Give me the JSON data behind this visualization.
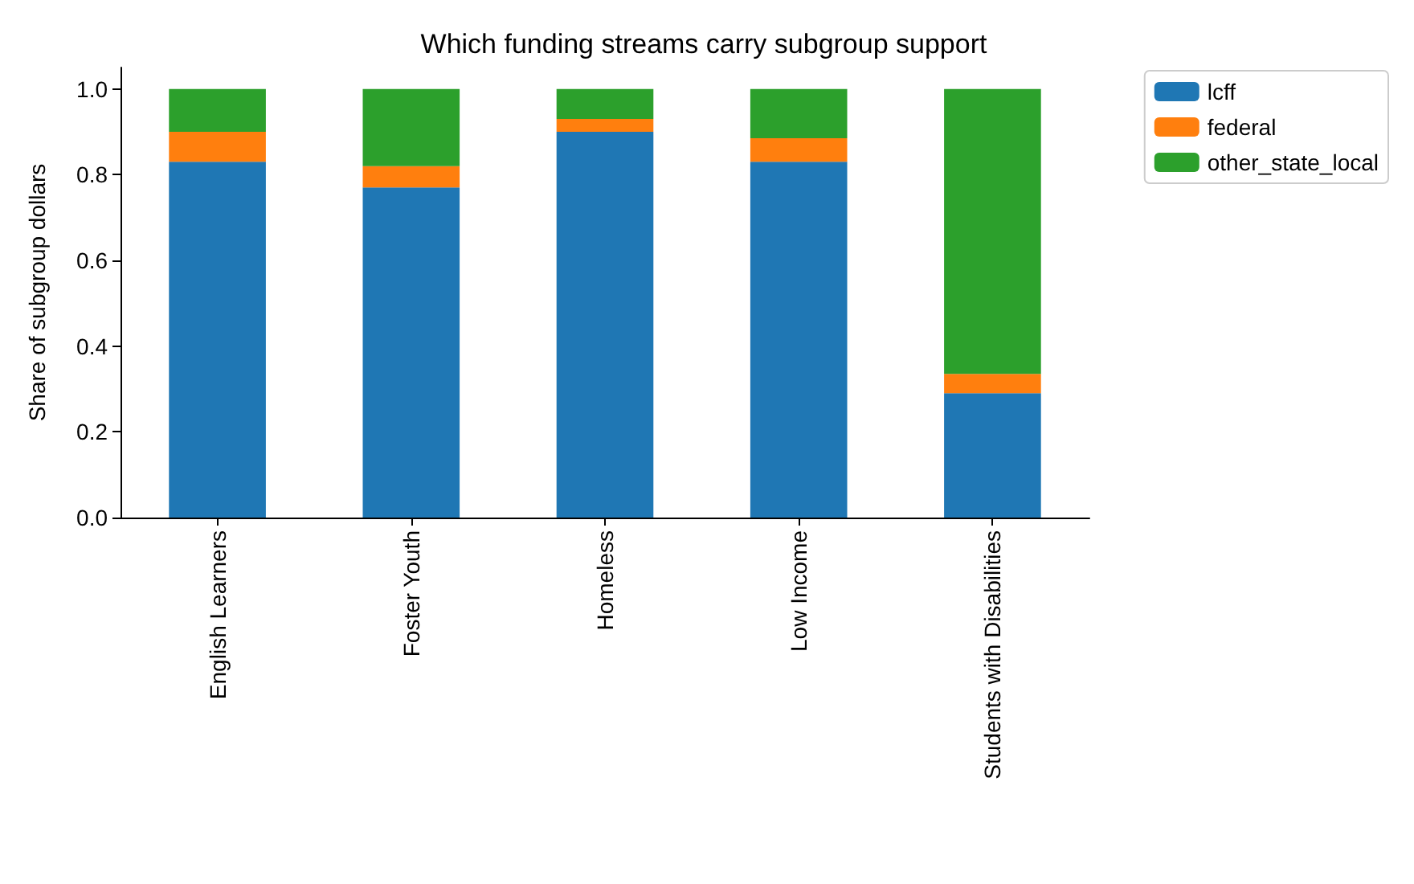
{
  "chart_data": {
    "type": "bar",
    "title": "Which funding streams carry subgroup support",
    "ylabel": "Share of subgroup dollars",
    "categories": [
      "English Learners",
      "Foster Youth",
      "Homeless",
      "Low Income",
      "Students with Disabilities"
    ],
    "stacked": true,
    "ylim": [
      0,
      1.05
    ],
    "yticks": [
      {
        "value": 0,
        "label": "0.0"
      },
      0.2,
      0.4,
      0.6,
      0.8,
      {
        "value": 1,
        "label": "1.0"
      }
    ],
    "legend": "top right",
    "grid": false,
    "series": [
      {
        "name": "lcff",
        "color": "#1f77b4",
        "values": [
          0.83,
          0.77,
          0.9,
          0.83,
          0.29
        ]
      },
      {
        "name": "federal",
        "color": "#ff7f0e",
        "values": [
          0.07,
          0.05,
          0.03,
          0.055,
          0.045
        ]
      },
      {
        "name": "other_state_local",
        "color": "#2ca02c",
        "values": [
          0.1,
          0.18,
          0.07,
          0.115,
          0.665
        ]
      }
    ]
  }
}
